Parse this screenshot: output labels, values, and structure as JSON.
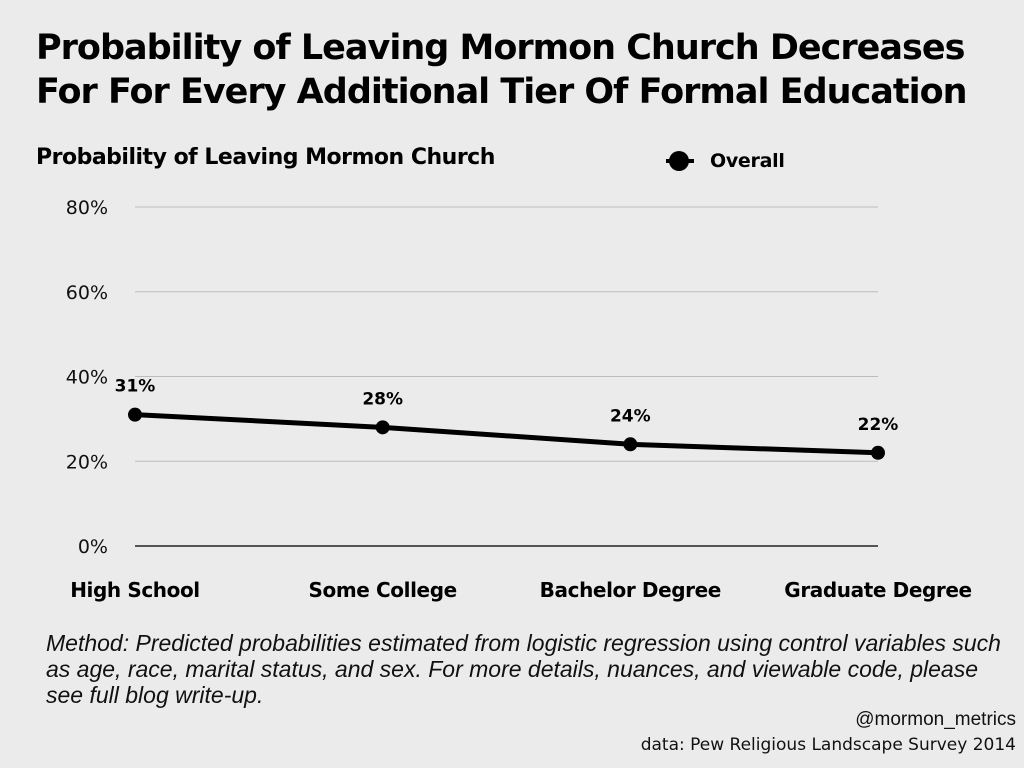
{
  "title": "Probability of Leaving Mormon Church Decreases For For Every Additional Tier Of Formal Education",
  "chart_data": {
    "type": "line",
    "title": "Probability of Leaving Mormon Church Decreases For For Every Additional Tier Of Formal Education",
    "ylabel": "Probability of Leaving Mormon Church",
    "xlabel": "",
    "categories": [
      "High School",
      "Some College",
      "Bachelor Degree",
      "Graduate Degree"
    ],
    "series": [
      {
        "name": "Overall",
        "values": [
          31,
          28,
          24,
          22
        ],
        "labels": [
          "31%",
          "28%",
          "24%",
          "22%"
        ]
      }
    ],
    "ylim": [
      0,
      80
    ],
    "yticks": [
      0,
      20,
      40,
      60,
      80
    ],
    "ytick_labels": [
      "0%",
      "20%",
      "40%",
      "60%",
      "80%"
    ],
    "grid": true,
    "legend": "top-right",
    "line_color": "#000000"
  },
  "notes": {
    "method": "Method: Predicted probabilities estimated from logistic regression using control variables such as age, race, marital status, and sex. For more details, nuances, and viewable code, please see full blog write-up.",
    "handle": "@mormon_metrics",
    "source": "data: Pew Religious Landscape Survey 2014"
  },
  "colors": {
    "background": "#ebebeb",
    "grid": "#bdbdbd",
    "line": "#000000"
  }
}
